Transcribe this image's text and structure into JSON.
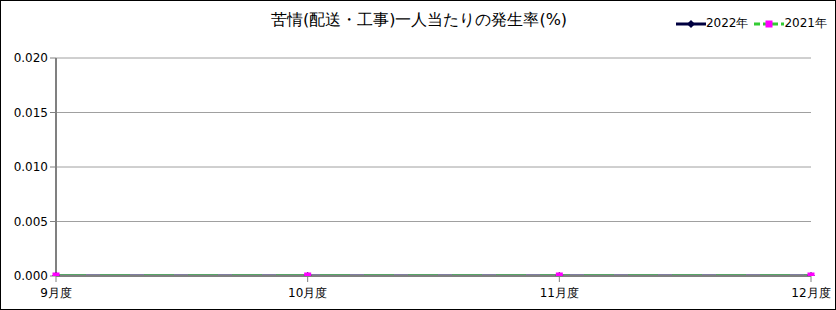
{
  "chart_data": {
    "type": "line",
    "title": "苦情(配送・工事)一人当たりの発生率(%)",
    "categories": [
      "9月度",
      "10月度",
      "11月度",
      "12月度"
    ],
    "series": [
      {
        "name": "2022年",
        "color": "#000040",
        "marker": "diamond",
        "line_style": "solid",
        "values": [
          0,
          0,
          0,
          0
        ]
      },
      {
        "name": "2021年",
        "color": "#33cc33",
        "marker": "square",
        "line_style": "dashed",
        "values": [
          0,
          0,
          0,
          0
        ]
      }
    ],
    "ylim": [
      0,
      0.02
    ],
    "yticks": [
      {
        "value": 0,
        "label": "0.000"
      },
      {
        "value": 0.005,
        "label": "0.005"
      },
      {
        "value": 0.01,
        "label": "0.010"
      },
      {
        "value": 0.015,
        "label": "0.015"
      },
      {
        "value": 0.02,
        "label": "0.020"
      }
    ],
    "grid": true,
    "legend": "top-right"
  }
}
